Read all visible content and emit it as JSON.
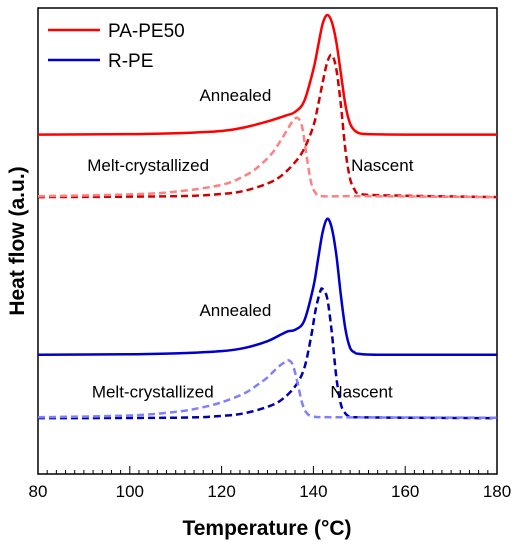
{
  "chart_data": {
    "type": "line",
    "title": "",
    "xlabel": "Temperature (°C)",
    "ylabel": "Heat flow  (a.u.)",
    "xlim": [
      80,
      180
    ],
    "xticks": [
      80,
      100,
      120,
      140,
      160,
      180
    ],
    "y_tick_labels": false,
    "grid": false,
    "legend": {
      "placement": "top-left",
      "entries": [
        {
          "name": "PA-PE50",
          "color": "#ff0000"
        },
        {
          "name": "R-PE",
          "color": "#0000cc"
        }
      ]
    },
    "annotations": [
      {
        "text": "Annealed",
        "x": 123,
        "y": 0.82
      },
      {
        "text": "Melt-crystallized",
        "x": 104,
        "y": 0.665
      },
      {
        "text": "Nascent",
        "x": 155,
        "y": 0.665
      },
      {
        "text": "Annealed",
        "x": 123,
        "y": 0.345
      },
      {
        "text": "Melt-crystallized",
        "x": 105,
        "y": 0.165
      },
      {
        "text": "Nascent",
        "x": 150.5,
        "y": 0.165
      }
    ],
    "ylim": [
      0,
      1
    ],
    "y_units": "arbitrary, offset for clarity",
    "series": [
      {
        "name": "PA-PE50",
        "group": "PA-PE50",
        "label": "Annealed",
        "color": "#ff0000",
        "style": "solid",
        "x": [
          80,
          100,
          110,
          120,
          125,
          130,
          134,
          136,
          138,
          140,
          141,
          142,
          143,
          144,
          145,
          146,
          147,
          148,
          149,
          150,
          152,
          160,
          180
        ],
        "y": [
          0.736,
          0.737,
          0.739,
          0.744,
          0.752,
          0.765,
          0.778,
          0.786,
          0.81,
          0.88,
          0.93,
          0.98,
          1.0,
          0.985,
          0.94,
          0.87,
          0.8,
          0.76,
          0.745,
          0.739,
          0.737,
          0.736,
          0.736
        ]
      },
      {
        "name": "PA-PE50",
        "group": "PA-PE50",
        "label": "Nascent",
        "color": "#d00000",
        "style": "dashed",
        "x": [
          80,
          110,
          120,
          125,
          130,
          133,
          136,
          138,
          140,
          141,
          142,
          143,
          144,
          145,
          146,
          147,
          148,
          149,
          150,
          155,
          180
        ],
        "y": [
          0.598,
          0.6,
          0.605,
          0.612,
          0.628,
          0.645,
          0.675,
          0.705,
          0.755,
          0.8,
          0.85,
          0.895,
          0.912,
          0.88,
          0.8,
          0.7,
          0.638,
          0.614,
          0.606,
          0.602,
          0.598
        ]
      },
      {
        "name": "PA-PE50",
        "group": "PA-PE50",
        "label": "Melt-crystallized",
        "color": "#ff8080",
        "style": "dashed",
        "x": [
          80,
          100,
          110,
          120,
          125,
          128,
          131,
          133,
          134.5,
          135.5,
          136.5,
          137.5,
          138.5,
          139.5,
          140.5,
          142,
          150,
          180
        ],
        "y": [
          0.6,
          0.604,
          0.61,
          0.625,
          0.645,
          0.665,
          0.695,
          0.725,
          0.75,
          0.766,
          0.773,
          0.755,
          0.69,
          0.63,
          0.607,
          0.6,
          0.6,
          0.598
        ]
      },
      {
        "name": "R-PE",
        "group": "R-PE",
        "label": "Annealed",
        "color": "#0000cc",
        "style": "solid",
        "x": [
          80,
          100,
          110,
          120,
          125,
          130,
          133,
          134.5,
          136,
          138,
          140,
          141,
          142,
          143,
          144,
          145,
          146,
          147,
          148,
          149,
          150,
          155,
          180
        ],
        "y": [
          0.25,
          0.251,
          0.253,
          0.258,
          0.265,
          0.28,
          0.295,
          0.302,
          0.305,
          0.325,
          0.4,
          0.46,
          0.52,
          0.55,
          0.53,
          0.47,
          0.38,
          0.305,
          0.265,
          0.255,
          0.252,
          0.25,
          0.25
        ]
      },
      {
        "name": "R-PE",
        "group": "R-PE",
        "label": "Nascent",
        "color": "#0000aa",
        "style": "dashed",
        "x": [
          80,
          110,
          120,
          125,
          130,
          133,
          136,
          138,
          139.5,
          140.5,
          141.5,
          142,
          143,
          144,
          145,
          146,
          147,
          148,
          150,
          160,
          180
        ],
        "y": [
          0.11,
          0.111,
          0.115,
          0.121,
          0.135,
          0.15,
          0.18,
          0.22,
          0.29,
          0.35,
          0.39,
          0.395,
          0.375,
          0.3,
          0.2,
          0.14,
          0.12,
          0.113,
          0.112,
          0.111,
          0.11
        ]
      },
      {
        "name": "R-PE",
        "group": "R-PE",
        "label": "Melt-crystallized",
        "color": "#8080ff",
        "style": "dashed",
        "x": [
          80,
          100,
          110,
          115,
          120,
          125,
          128,
          130,
          132,
          133.5,
          134.5,
          135.5,
          136.5,
          137.5,
          138.5,
          140,
          145,
          180
        ],
        "y": [
          0.112,
          0.116,
          0.124,
          0.132,
          0.145,
          0.165,
          0.185,
          0.2,
          0.22,
          0.232,
          0.238,
          0.228,
          0.19,
          0.145,
          0.122,
          0.114,
          0.112,
          0.111
        ]
      }
    ]
  }
}
